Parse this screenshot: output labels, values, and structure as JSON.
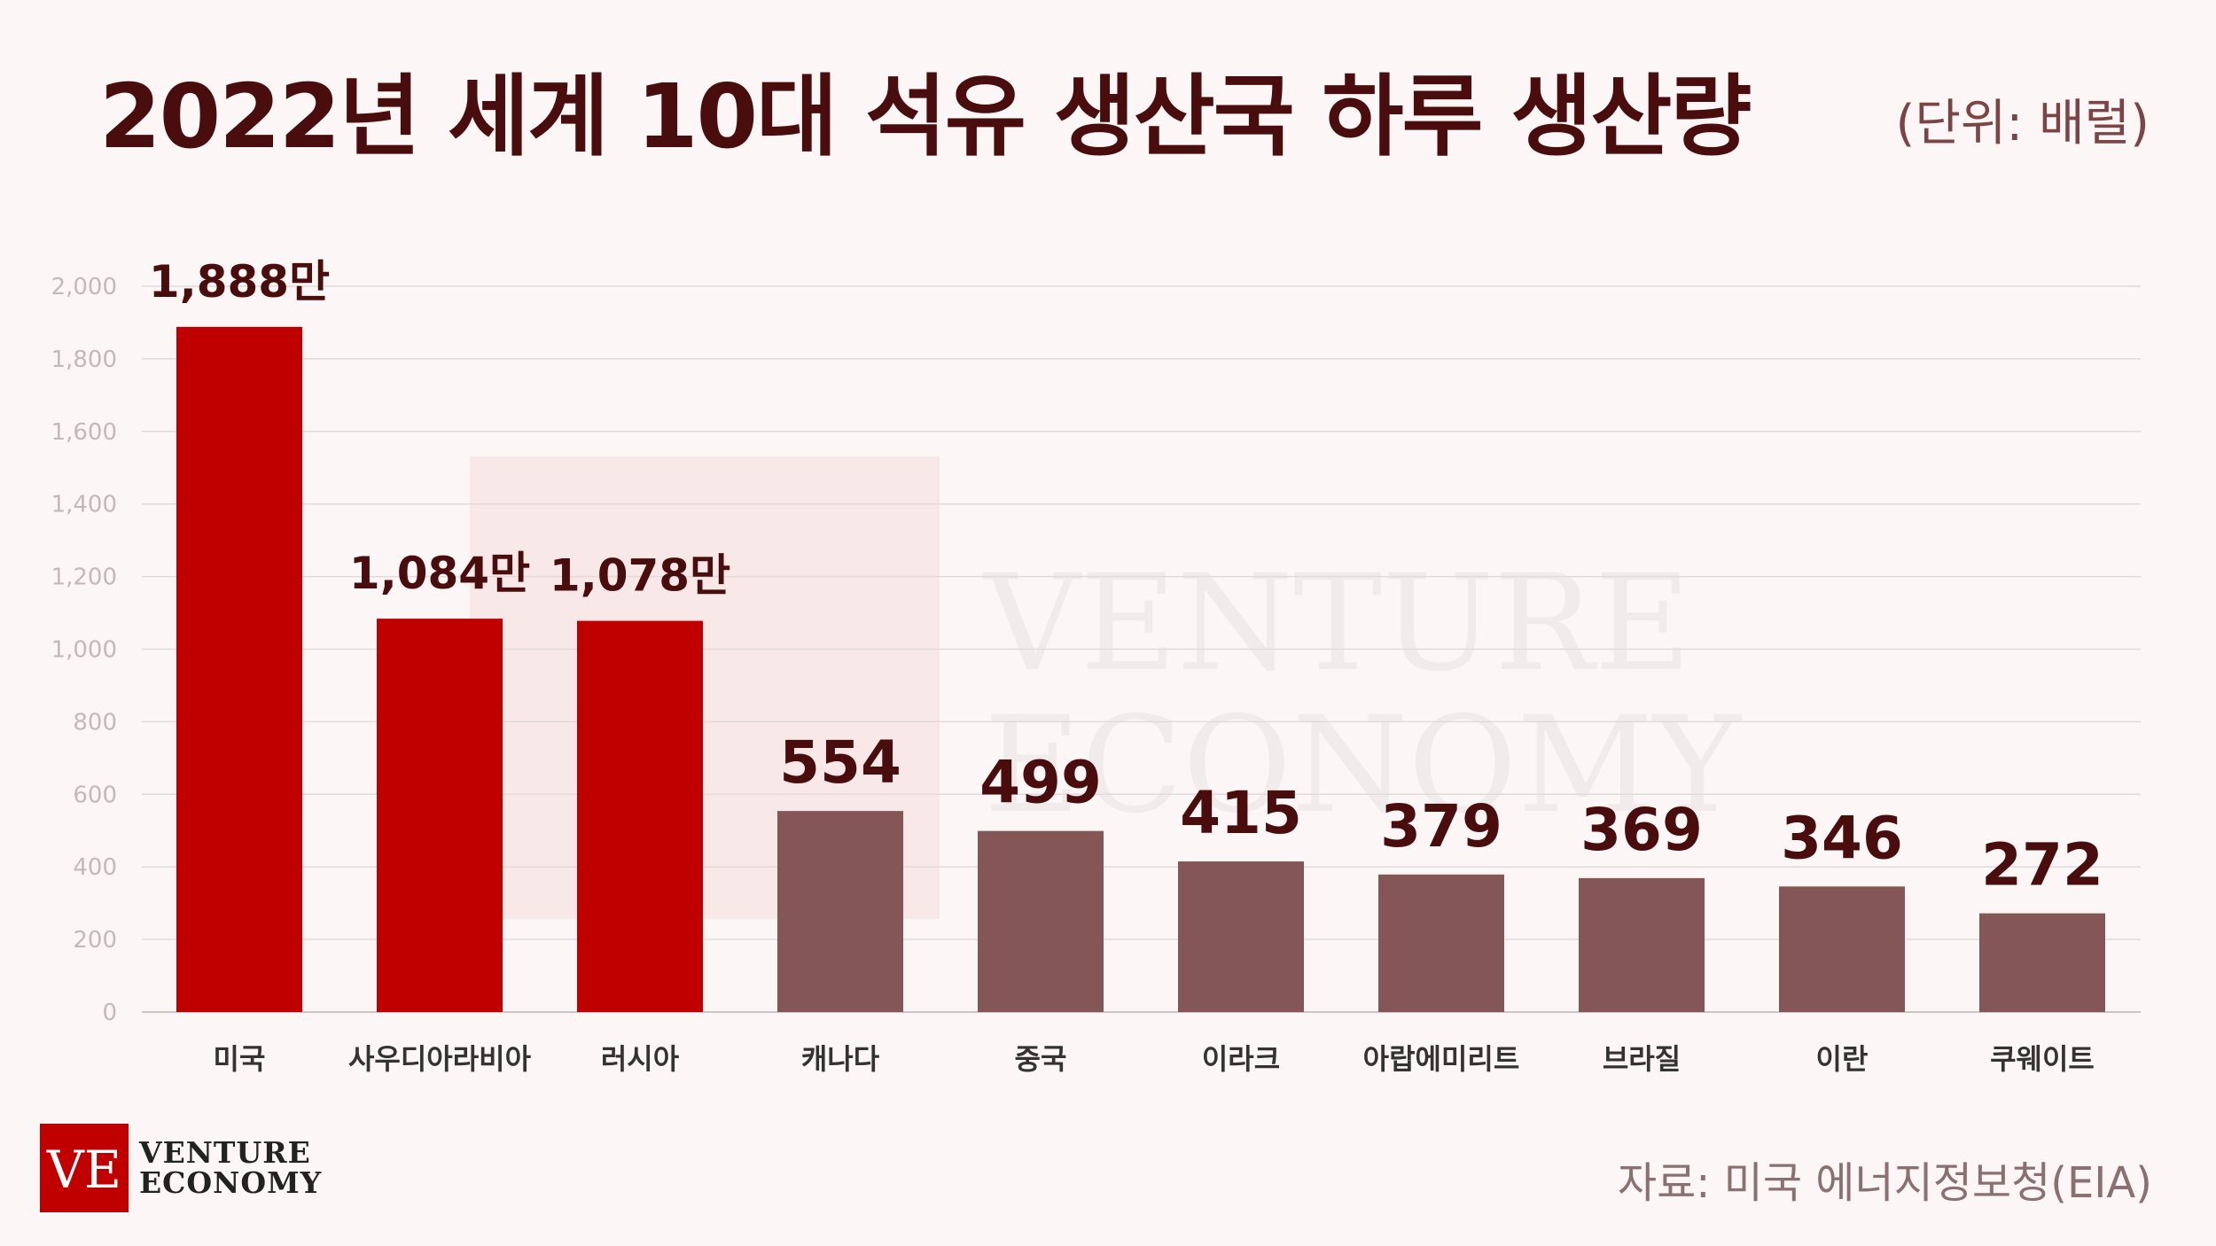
{
  "title": "2022년 세계 10대 석유 생산국 하루 생산량",
  "unit_note": "(단위: 배럴)",
  "source": "자료: 미국 에너지정보청(EIA)",
  "brand": {
    "mark": "VE",
    "line1": "VENTURE",
    "line2": "ECONOMY"
  },
  "colors": {
    "background": "#fcf7f6",
    "highlight_bar": "#c00000",
    "other_bar": "#845656",
    "label": "#4a0d0d",
    "grid": "#e2dada",
    "tick": "#c4b8b8",
    "category": "#333333"
  },
  "chart_data": {
    "type": "bar",
    "categories": [
      "미국",
      "사우디아라비아",
      "러시아",
      "캐나다",
      "중국",
      "이라크",
      "아랍에미리트",
      "브라질",
      "이란",
      "쿠웨이트"
    ],
    "values": [
      1888,
      1084,
      1078,
      554,
      499,
      415,
      379,
      369,
      346,
      272
    ],
    "data_labels": [
      "1,888만",
      "1,084만",
      "1,078만",
      "554",
      "499",
      "415",
      "379",
      "369",
      "346",
      "272"
    ],
    "highlighted": [
      true,
      true,
      true,
      false,
      false,
      false,
      false,
      false,
      false,
      false
    ],
    "yticks": [
      "0",
      "200",
      "400",
      "600",
      "800",
      "1,000",
      "1,200",
      "1,400",
      "1,600",
      "1,800",
      "2,000"
    ],
    "ylim": [
      0,
      2000
    ],
    "grid": true,
    "legend": "none"
  }
}
